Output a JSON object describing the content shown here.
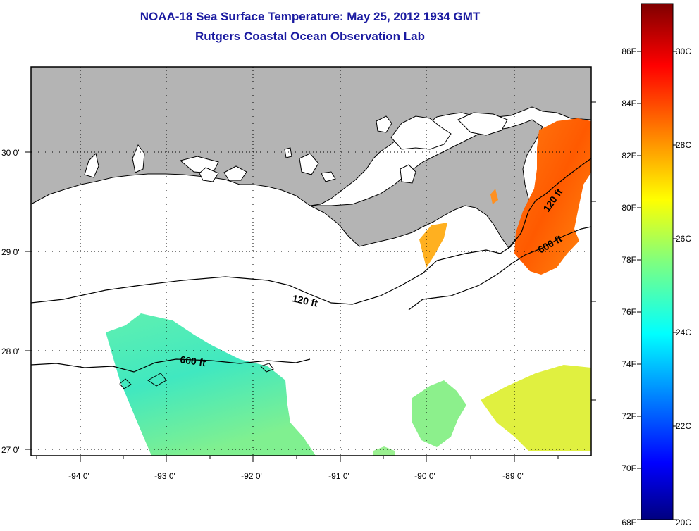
{
  "title": "NOAA-18 Sea Surface Temperature:  May 25, 2012 1934 GMT",
  "subtitle": "Rutgers Coastal Ocean Observation Lab",
  "map": {
    "lon_ticks": [
      "-94 0'",
      "-93 0'",
      "-92 0'",
      "-91 0'",
      "-90 0'",
      "-89 0'"
    ],
    "lat_ticks": [
      "30 0'",
      "29 0'",
      "28 0'",
      "27 0'"
    ],
    "contour_labels": [
      {
        "text": "120 ft",
        "depth": "120 ft"
      },
      {
        "text": "600 ft",
        "depth": "600 ft"
      },
      {
        "text": "120 ft",
        "depth": "120 ft"
      },
      {
        "text": "600 ft",
        "depth": "600 ft"
      }
    ],
    "colors": {
      "land": "#b4b4b4",
      "frame": "#000000",
      "grid": "#000000"
    }
  },
  "colorbar": {
    "fahrenheit": [
      "86F",
      "84F",
      "82F",
      "80F",
      "78F",
      "76F",
      "74F",
      "72F",
      "70F",
      "68F"
    ],
    "celsius": [
      "30C",
      "28C",
      "26C",
      "24C",
      "22C",
      "20C"
    ],
    "stops": [
      "#00007f",
      "#0000ff",
      "#007fff",
      "#00ffff",
      "#7fff7f",
      "#ffff00",
      "#ff7f00",
      "#ff0000",
      "#7f0000"
    ]
  }
}
